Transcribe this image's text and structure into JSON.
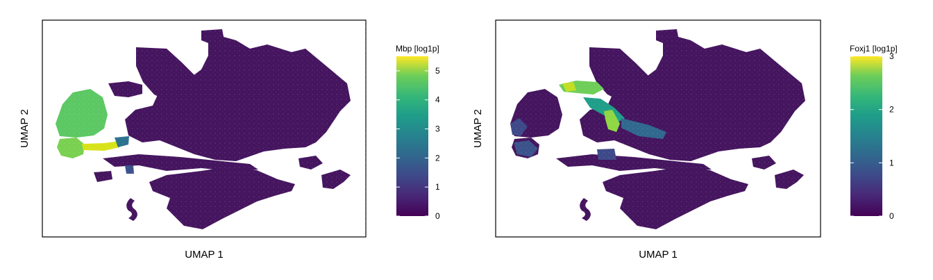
{
  "chart_data": [
    {
      "type": "scatter",
      "subtype": "umap-hexbin-feature-plot",
      "title": "",
      "xlabel": "UMAP 1",
      "ylabel": "UMAP 2",
      "axis_ticks_shown": false,
      "legend_position": "right",
      "colorbar": {
        "title": "Mbp [log1p]",
        "colormap": "viridis",
        "range": [
          0,
          5.5
        ],
        "ticks": [
          0,
          1,
          2,
          3,
          4,
          5
        ],
        "tick_labels": [
          "0",
          "1",
          "2",
          "3",
          "4",
          "5"
        ]
      },
      "high_expression_regions": [
        {
          "region": "left cluster (upper)",
          "value": 3.9
        },
        {
          "region": "left cluster (lower)",
          "value": 4.6
        },
        {
          "region": "bridge strand",
          "value": 5.3
        }
      ],
      "background_value": 0.3
    },
    {
      "type": "scatter",
      "subtype": "umap-hexbin-feature-plot",
      "title": "",
      "xlabel": "UMAP 1",
      "ylabel": "UMAP 2",
      "axis_ticks_shown": false,
      "legend_position": "right",
      "colorbar": {
        "title": "Foxj1 [log1p]",
        "colormap": "viridis",
        "range": [
          0,
          3
        ],
        "ticks": [
          0,
          1,
          2,
          3
        ],
        "tick_labels": [
          "0",
          "1",
          "2",
          "3"
        ]
      },
      "high_expression_regions": [
        {
          "region": "upper diagonal strand",
          "value": 2.5
        },
        {
          "region": "central strand",
          "value": 1.8
        }
      ],
      "background_value": 0.2
    }
  ]
}
